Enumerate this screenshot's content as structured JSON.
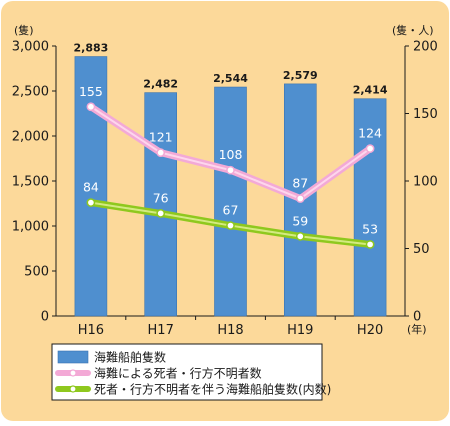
{
  "colors": {
    "background": "#fcd99a",
    "bar": "#4f8fcf",
    "bar_edge": "#3b74b0",
    "line_casualties": "#f3a9d6",
    "line_casualties_core": "#ffe1f3",
    "line_ships_with_casualties": "#8fc81e",
    "line_ships_core": "#e4f29a",
    "marker_fill": "#ffffff",
    "axis": "#1a1a1a",
    "legend_bg": "#ffffff",
    "label_on_bar": "#ffffff",
    "label_default": "#1a1a1a"
  },
  "chart_data": {
    "type": "bar",
    "categories": [
      "H16",
      "H17",
      "H18",
      "H19",
      "H20"
    ],
    "xlabel": "(年)",
    "y_left": {
      "unit": "(隻)",
      "lim": [
        0,
        3000
      ],
      "ticks": [
        "0",
        "500",
        "1,000",
        "1,500",
        "2,000",
        "2,500",
        "3,000"
      ],
      "tick_values": [
        0,
        500,
        1000,
        1500,
        2000,
        2500,
        3000
      ]
    },
    "y_right": {
      "unit": "(隻・人)",
      "lim": [
        0,
        200
      ],
      "ticks": [
        "0",
        "50",
        "100",
        "150",
        "200"
      ],
      "tick_values": [
        0,
        50,
        100,
        150,
        200
      ]
    },
    "series": [
      {
        "name": "海難船舶隻数",
        "kind": "bar",
        "axis": "left",
        "values": [
          2883,
          2482,
          2544,
          2579,
          2414
        ],
        "labels": [
          "2,883",
          "2,482",
          "2,544",
          "2,579",
          "2,414"
        ]
      },
      {
        "name": "海難による死者・行方不明者数",
        "kind": "line",
        "axis": "right",
        "values": [
          155,
          121,
          108,
          87,
          124
        ],
        "labels": [
          "155",
          "121",
          "108",
          "87",
          "124"
        ]
      },
      {
        "name": "死者・行方不明者を伴う海難船舶隻数(内数)",
        "kind": "line",
        "axis": "right",
        "values": [
          84,
          76,
          67,
          59,
          53
        ],
        "labels": [
          "84",
          "76",
          "67",
          "59",
          "53"
        ]
      }
    ],
    "legend_position": "bottom-left"
  }
}
